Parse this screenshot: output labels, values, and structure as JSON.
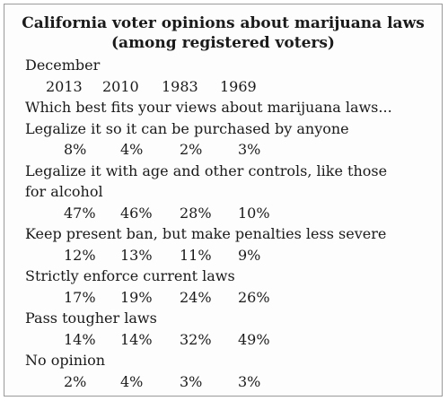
{
  "chart_data": {
    "type": "table",
    "title": "California voter opinions about marijuana laws",
    "subtitle": "(among registered voters)",
    "column_header_prefix": "December",
    "columns": [
      "2013",
      "2010",
      "1983",
      "1969"
    ],
    "question": "Which best fits your views about marijuana laws...",
    "rows": [
      {
        "label_lines": [
          "Legalize it so it can be purchased by anyone"
        ],
        "values": [
          "8%",
          "4%",
          "2%",
          "3%"
        ]
      },
      {
        "label_lines": [
          "Legalize it with age and other controls, like those",
          "for alcohol"
        ],
        "values": [
          "47%",
          "46%",
          "28%",
          "10%"
        ]
      },
      {
        "label_lines": [
          "Keep present ban, but make penalties less severe"
        ],
        "values": [
          "12%",
          "13%",
          "11%",
          "9%"
        ]
      },
      {
        "label_lines": [
          "Strictly enforce current laws"
        ],
        "values": [
          "17%",
          "19%",
          "24%",
          "26%"
        ]
      },
      {
        "label_lines": [
          "Pass tougher laws"
        ],
        "values": [
          "14%",
          "14%",
          "32%",
          "49%"
        ]
      },
      {
        "label_lines": [
          "No opinion"
        ],
        "values": [
          "2%",
          "4%",
          "3%",
          "3%"
        ]
      }
    ]
  }
}
